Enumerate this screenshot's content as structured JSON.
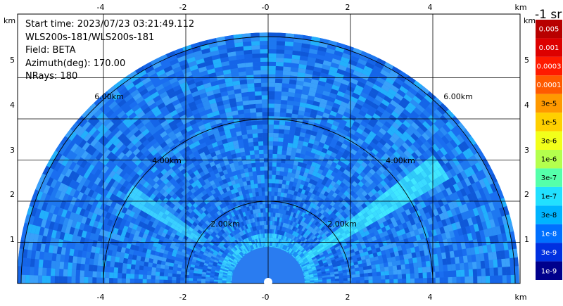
{
  "info": {
    "start_time": "Start time: 2023/07/23 03:21:49.112",
    "device": "WLS200s-181/WLS200s-181",
    "field": "Field: BETA",
    "azimuth": "Azimuth(deg): 170.00",
    "nrays": "NRays: 180"
  },
  "axes": {
    "unit": "km",
    "x_ticks": [
      "-4",
      "-2",
      "-0",
      "2",
      "4"
    ],
    "x_tick_values": [
      -4,
      -2,
      0,
      2,
      4
    ],
    "y_ticks": [
      "1",
      "2",
      "3",
      "4",
      "5"
    ],
    "y_tick_values": [
      1,
      2,
      3,
      4,
      5
    ],
    "xlim": [
      -6.1,
      6.1
    ],
    "ylim": [
      0,
      6.0
    ]
  },
  "range_rings": [
    {
      "km": 2,
      "label": "2.00km"
    },
    {
      "km": 4,
      "label": "4.00km"
    },
    {
      "km": 6,
      "label": "6.00km"
    }
  ],
  "colorbar": {
    "unit_label": "-1 sr",
    "labels": [
      "0.005",
      "0.001",
      "0.0003",
      "0.0001",
      "3e-5",
      "1e-5",
      "3e-6",
      "1e-6",
      "3e-7",
      "1e-7",
      "3e-8",
      "1e-8",
      "3e-9",
      "1e-9"
    ],
    "colors": [
      "#b80000",
      "#dd0000",
      "#ff1a00",
      "#ff5a00",
      "#ff9900",
      "#ffd000",
      "#f2ff1a",
      "#b4ff4d",
      "#55ffaa",
      "#22e0ff",
      "#00b4ff",
      "#0070ff",
      "#0030e0",
      "#00008c"
    ]
  }
}
